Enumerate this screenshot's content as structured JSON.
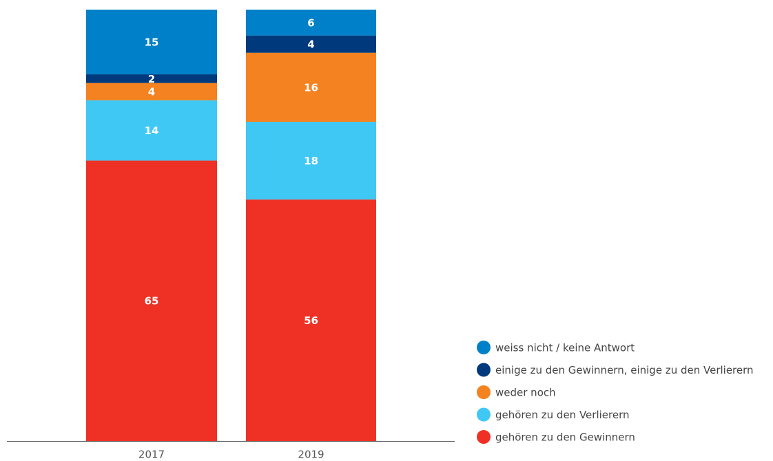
{
  "chart_data": {
    "type": "stacked_bar",
    "categories": [
      "2017",
      "2019"
    ],
    "series": [
      {
        "name": "gehören zu den Gewinnern",
        "color": "#ee3124",
        "values": [
          65,
          56
        ]
      },
      {
        "name": "gehören zu den Verlierern",
        "color": "#40c8f4",
        "values": [
          14,
          18
        ]
      },
      {
        "name": "weder noch",
        "color": "#f58220",
        "values": [
          4,
          16
        ]
      },
      {
        "name": "einige zu den Gewinnern, einige zu den Verlierern",
        "color": "#003a7d",
        "values": [
          2,
          4
        ]
      },
      {
        "name": "weiss nicht / keine Antwort",
        "color": "#0080c8",
        "values": [
          15,
          6
        ]
      }
    ],
    "ylim": [
      0,
      100
    ],
    "legend": "right"
  }
}
